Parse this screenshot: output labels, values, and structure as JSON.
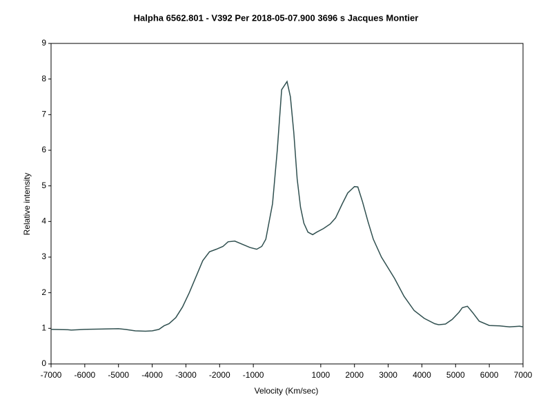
{
  "chart_data": {
    "type": "line",
    "title": "Halpha 6562.801 - V392 Per   2018-05-07.900   3696 s   Jacques Montier",
    "x_label": "Velocity (Km/sec)",
    "y_label": "Relative intensity",
    "x": [
      -7000,
      -6500,
      -6400,
      -6000,
      -5500,
      -5000,
      -4800,
      -4500,
      -4200,
      -4000,
      -3800,
      -3650,
      -3500,
      -3300,
      -3100,
      -2900,
      -2700,
      -2500,
      -2300,
      -2100,
      -1900,
      -1750,
      -1550,
      -1300,
      -1100,
      -900,
      -750,
      -630,
      -530,
      -430,
      -290,
      -160,
      0,
      100,
      200,
      300,
      400,
      500,
      620,
      760,
      880,
      1080,
      1280,
      1440,
      1640,
      1800,
      2000,
      2100,
      2240,
      2400,
      2560,
      2800,
      3190,
      3470,
      3770,
      4070,
      4380,
      4500,
      4700,
      4900,
      5100,
      5200,
      5350,
      5500,
      5700,
      6000,
      6300,
      6600,
      6900,
      7000
    ],
    "series": [
      {
        "name": "Halpha",
        "color": "#2f4f4f",
        "values": [
          0.97,
          0.96,
          0.95,
          0.97,
          0.98,
          0.99,
          0.97,
          0.93,
          0.92,
          0.93,
          0.97,
          1.07,
          1.13,
          1.3,
          1.6,
          2.0,
          2.45,
          2.9,
          3.15,
          3.22,
          3.3,
          3.43,
          3.45,
          3.35,
          3.27,
          3.22,
          3.3,
          3.5,
          4.0,
          4.5,
          6.0,
          7.7,
          7.93,
          7.5,
          6.5,
          5.2,
          4.4,
          3.95,
          3.7,
          3.63,
          3.7,
          3.8,
          3.93,
          4.1,
          4.5,
          4.8,
          4.98,
          4.97,
          4.55,
          4.0,
          3.5,
          3.0,
          2.4,
          1.9,
          1.5,
          1.28,
          1.13,
          1.1,
          1.12,
          1.25,
          1.45,
          1.58,
          1.62,
          1.45,
          1.2,
          1.08,
          1.07,
          1.04,
          1.06,
          1.04
        ]
      }
    ],
    "xlim": [
      -7000,
      7000
    ],
    "xticks": [
      -7000,
      -6000,
      -5000,
      -4000,
      -3000,
      -2000,
      -1000,
      1000,
      2000,
      3000,
      4000,
      5000,
      6000,
      7000
    ],
    "ylim": [
      0,
      9
    ],
    "yticks": [
      0,
      1,
      2,
      3,
      4,
      5,
      6,
      7,
      8,
      9
    ]
  }
}
